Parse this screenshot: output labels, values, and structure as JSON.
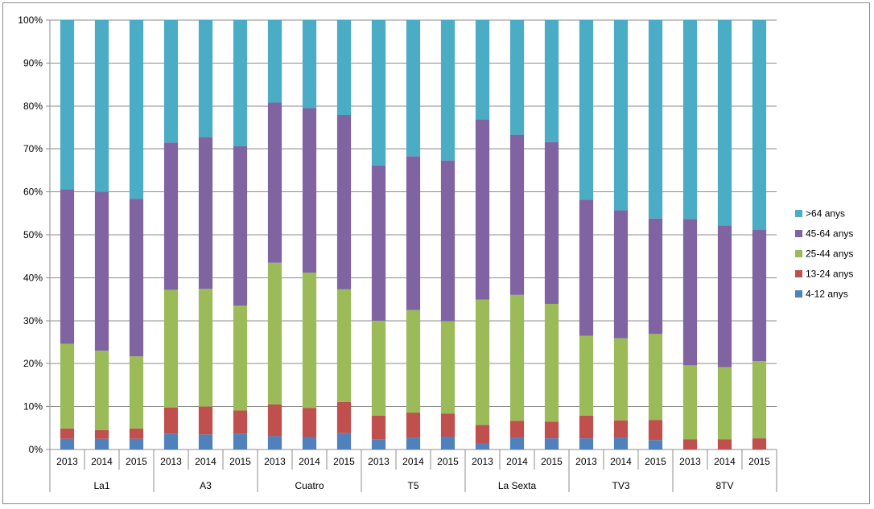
{
  "chart_data": {
    "type": "bar",
    "stacked": "percent",
    "title": "",
    "xlabel": "",
    "ylabel": "",
    "ylim": [
      0,
      100
    ],
    "y_ticks": [
      "0%",
      "10%",
      "20%",
      "30%",
      "40%",
      "50%",
      "60%",
      "70%",
      "80%",
      "90%",
      "100%"
    ],
    "grid": true,
    "legend_position": "right",
    "groups": [
      {
        "name": "La1",
        "years": [
          "2013",
          "2014",
          "2015"
        ]
      },
      {
        "name": "A3",
        "years": [
          "2013",
          "2014",
          "2015"
        ]
      },
      {
        "name": "Cuatro",
        "years": [
          "2013",
          "2014",
          "2015"
        ]
      },
      {
        "name": "T5",
        "years": [
          "2013",
          "2014",
          "2015"
        ]
      },
      {
        "name": "La Sexta",
        "years": [
          "2013",
          "2014",
          "2015"
        ]
      },
      {
        "name": "TV3",
        "years": [
          "2013",
          "2014",
          "2015"
        ]
      },
      {
        "name": "8TV",
        "years": [
          "2013",
          "2014",
          "2015"
        ]
      }
    ],
    "series": [
      {
        "name": "4-12 anys",
        "color": "#4f81bd",
        "values": [
          2.5,
          2.5,
          2.5,
          3.7,
          3.5,
          3.7,
          3.1,
          2.9,
          3.8,
          2.4,
          2.8,
          3.0,
          1.5,
          2.8,
          2.6,
          2.6,
          2.8,
          2.2,
          0.0,
          0.0,
          0.0
        ]
      },
      {
        "name": "13-24 anys",
        "color": "#c0504d",
        "values": [
          2.4,
          2.0,
          2.4,
          6.1,
          6.5,
          5.4,
          7.4,
          6.8,
          7.3,
          5.5,
          5.8,
          5.4,
          4.2,
          3.9,
          3.9,
          5.3,
          4.0,
          4.7,
          2.4,
          2.4,
          2.6
        ]
      },
      {
        "name": "25-44 anys",
        "color": "#9bbb59",
        "values": [
          19.7,
          18.5,
          16.8,
          27.4,
          27.4,
          24.4,
          33.0,
          31.5,
          26.2,
          22.1,
          23.9,
          21.5,
          29.2,
          29.3,
          27.4,
          18.6,
          19.1,
          20.0,
          17.2,
          16.8,
          18.0
        ]
      },
      {
        "name": "45-64 anys",
        "color": "#8064a2",
        "values": [
          36.0,
          37.0,
          36.7,
          34.3,
          35.4,
          37.1,
          37.3,
          38.3,
          40.6,
          36.1,
          35.8,
          37.4,
          42.0,
          37.3,
          37.7,
          31.7,
          29.8,
          26.9,
          34.1,
          33.0,
          30.6
        ]
      },
      {
        "name": ">64 anys",
        "color": "#4bacc6",
        "values": [
          39.4,
          40.0,
          41.6,
          28.5,
          27.2,
          29.4,
          19.2,
          20.5,
          22.1,
          33.9,
          31.7,
          32.7,
          23.1,
          26.7,
          28.4,
          41.8,
          44.3,
          46.2,
          46.3,
          47.8,
          48.8
        ]
      }
    ]
  }
}
